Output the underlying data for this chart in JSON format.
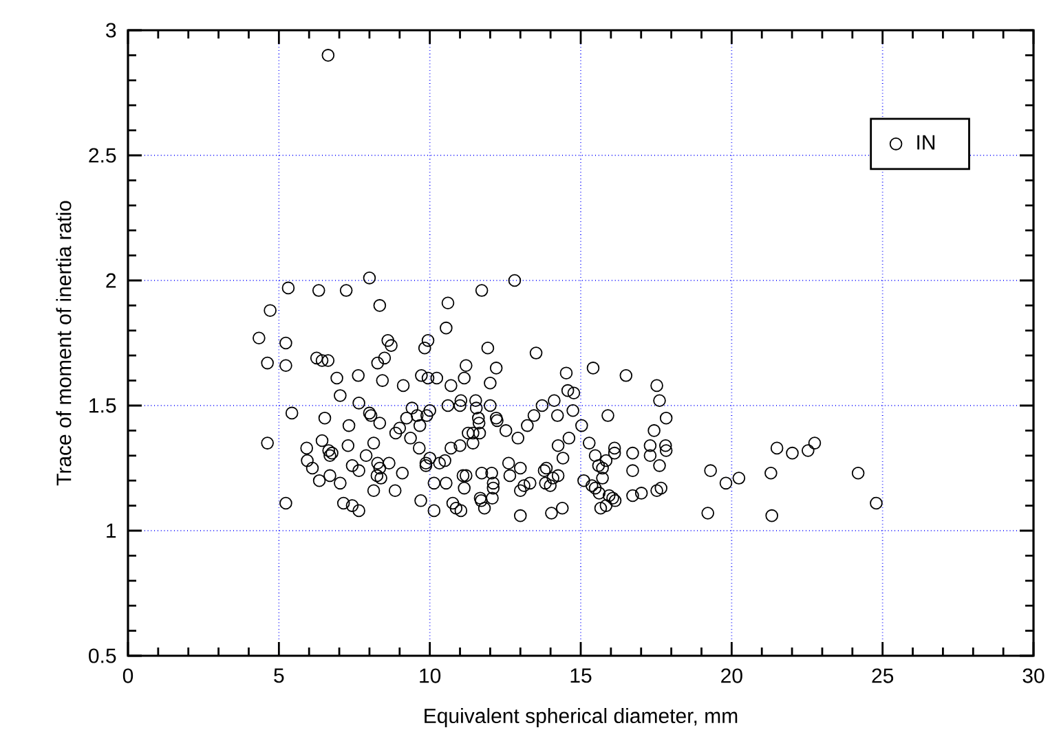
{
  "chart_data": {
    "type": "scatter",
    "xlabel": "Equivalent spherical diameter, mm",
    "ylabel": "Trace of moment of inertia ratio",
    "xlim": [
      0,
      30
    ],
    "ylim": [
      0.5,
      3
    ],
    "xticks": [
      0,
      5,
      10,
      15,
      20,
      25,
      30
    ],
    "yticks": [
      0.5,
      1,
      1.5,
      2,
      2.5,
      3
    ],
    "grid": true,
    "legend": "top right",
    "marker": "circle",
    "series": [
      {
        "name": "IN",
        "color": "#000000",
        "x": [
          6.63,
          4.34,
          4.71,
          4.62,
          4.62,
          5.31,
          5.23,
          5.23,
          5.43,
          5.23,
          6.32,
          7.23,
          8.0,
          8.34,
          10.6,
          10.54,
          11.72,
          12.81,
          6.25,
          6.43,
          6.63,
          6.92,
          7.63,
          7.03,
          7.65,
          8.27,
          8.5,
          8.61,
          8.72,
          8.43,
          9.12,
          8.0,
          8.05,
          8.34,
          6.52,
          7.32,
          5.92,
          6.43,
          6.65,
          6.76,
          6.69,
          7.29,
          5.94,
          6.11,
          6.34,
          6.69,
          7.03,
          7.43,
          7.65,
          7.89,
          8.14,
          8.27,
          8.34,
          8.25,
          8.38,
          8.65,
          8.14,
          8.85,
          9.09,
          7.14,
          7.43,
          7.65,
          8.87,
          9.0,
          9.23,
          9.41,
          9.36,
          9.58,
          9.67,
          9.72,
          9.83,
          9.94,
          9.94,
          10.23,
          10.0,
          9.9,
          9.65,
          9.87,
          9.87,
          10.0,
          9.7,
          10.14,
          10.14,
          10.32,
          10.5,
          10.54,
          10.6,
          10.7,
          10.7,
          11.0,
          10.76,
          10.87,
          11.03,
          11.14,
          11.2,
          11.03,
          11.0,
          11.1,
          11.2,
          11.14,
          11.27,
          11.43,
          11.43,
          11.52,
          11.54,
          11.61,
          11.65,
          11.63,
          11.92,
          12.2,
          12.0,
          12.0,
          12.2,
          12.23,
          12.52,
          12.92,
          13.23,
          13.45,
          13.72,
          13.52,
          14.12,
          14.23,
          14.52,
          14.57,
          14.77,
          14.74,
          14.61,
          14.25,
          14.41,
          15.03,
          15.41,
          16.5,
          15.9,
          15.28,
          15.48,
          15.59,
          15.72,
          15.84,
          15.72,
          16.12,
          16.12,
          16.72,
          16.72,
          17.3,
          17.3,
          17.43,
          17.52,
          17.61,
          17.83,
          17.81,
          17.83,
          17.61,
          17.66,
          17.52,
          15.1,
          15.37,
          15.48,
          15.61,
          15.66,
          15.84,
          15.94,
          16.06,
          16.14,
          16.72,
          17.01,
          14.39,
          14.03,
          13.83,
          13.79,
          13.86,
          14.08,
          14.25,
          13.99,
          13.32,
          13.12,
          13.0,
          13.0,
          12.65,
          12.61,
          13.0,
          12.05,
          12.1,
          12.1,
          11.67,
          11.72,
          11.81,
          12.07,
          11.7,
          19.3,
          19.81,
          20.24,
          19.21,
          21.3,
          21.33,
          21.5,
          22.01,
          22.53,
          22.75,
          24.19,
          24.79
        ],
        "values": [
          2.9,
          1.77,
          1.88,
          1.67,
          1.35,
          1.97,
          1.75,
          1.66,
          1.47,
          1.11,
          1.96,
          1.96,
          2.01,
          1.9,
          1.91,
          1.81,
          1.96,
          2.0,
          1.69,
          1.68,
          1.68,
          1.61,
          1.62,
          1.54,
          1.51,
          1.67,
          1.69,
          1.76,
          1.74,
          1.6,
          1.58,
          1.47,
          1.46,
          1.43,
          1.45,
          1.42,
          1.33,
          1.36,
          1.32,
          1.31,
          1.3,
          1.34,
          1.28,
          1.25,
          1.2,
          1.22,
          1.19,
          1.26,
          1.24,
          1.3,
          1.35,
          1.27,
          1.25,
          1.22,
          1.21,
          1.27,
          1.16,
          1.16,
          1.23,
          1.11,
          1.1,
          1.08,
          1.39,
          1.41,
          1.45,
          1.49,
          1.37,
          1.46,
          1.42,
          1.62,
          1.73,
          1.76,
          1.61,
          1.61,
          1.48,
          1.46,
          1.33,
          1.27,
          1.26,
          1.29,
          1.12,
          1.08,
          1.19,
          1.27,
          1.28,
          1.19,
          1.5,
          1.58,
          1.33,
          1.34,
          1.11,
          1.09,
          1.08,
          1.61,
          1.66,
          1.52,
          1.5,
          1.22,
          1.22,
          1.17,
          1.39,
          1.35,
          1.39,
          1.52,
          1.49,
          1.45,
          1.39,
          1.43,
          1.73,
          1.65,
          1.59,
          1.5,
          1.45,
          1.44,
          1.4,
          1.37,
          1.42,
          1.46,
          1.5,
          1.71,
          1.52,
          1.46,
          1.63,
          1.56,
          1.55,
          1.48,
          1.37,
          1.34,
          1.29,
          1.42,
          1.65,
          1.62,
          1.46,
          1.35,
          1.3,
          1.26,
          1.25,
          1.28,
          1.21,
          1.33,
          1.31,
          1.31,
          1.24,
          1.34,
          1.3,
          1.4,
          1.58,
          1.52,
          1.45,
          1.34,
          1.32,
          1.26,
          1.17,
          1.16,
          1.2,
          1.18,
          1.17,
          1.15,
          1.09,
          1.1,
          1.14,
          1.13,
          1.12,
          1.14,
          1.15,
          1.09,
          1.07,
          1.19,
          1.24,
          1.25,
          1.21,
          1.22,
          1.18,
          1.19,
          1.18,
          1.16,
          1.25,
          1.22,
          1.27,
          1.06,
          1.23,
          1.17,
          1.19,
          1.13,
          1.23,
          1.09,
          1.13,
          1.12,
          1.24,
          1.19,
          1.21,
          1.07,
          1.23,
          1.06,
          1.33,
          1.31,
          1.32,
          1.35,
          1.23,
          1.11
        ]
      }
    ]
  }
}
